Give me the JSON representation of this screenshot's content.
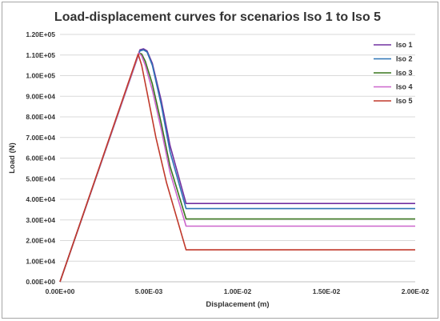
{
  "chart_data": {
    "type": "line",
    "title": "Load-displacement curves for scenarios Iso 1 to Iso 5",
    "xlabel": "Displacement (m)",
    "ylabel": "Load (N)",
    "xlim": [
      0,
      0.02
    ],
    "ylim": [
      0,
      120000
    ],
    "x_ticks": [
      0,
      0.005,
      0.01,
      0.015,
      0.02
    ],
    "x_tick_labels": [
      "0.00E+00",
      "5.00E-03",
      "1.00E-02",
      "1.50E-02",
      "2.00E-02"
    ],
    "y_ticks": [
      0,
      10000,
      20000,
      30000,
      40000,
      50000,
      60000,
      70000,
      80000,
      90000,
      100000,
      110000,
      120000
    ],
    "y_tick_labels": [
      "0.00E+00",
      "1.00E+04",
      "2.00E+04",
      "3.00E+04",
      "4.00E+04",
      "5.00E+04",
      "6.00E+04",
      "7.00E+04",
      "8.00E+04",
      "9.00E+04",
      "1.00E+05",
      "1.10E+05",
      "1.20E+05"
    ],
    "grid": "horizontal",
    "legend_position": "top-right",
    "series": [
      {
        "name": "Iso 1",
        "color": "#7030a0",
        "points": [
          [
            0,
            0
          ],
          [
            0.0045,
            112500
          ],
          [
            0.0047,
            113000
          ],
          [
            0.0049,
            112000
          ],
          [
            0.0052,
            106000
          ],
          [
            0.0057,
            88000
          ],
          [
            0.0062,
            66000
          ],
          [
            0.0071,
            38000
          ],
          [
            0.02,
            38000
          ]
        ]
      },
      {
        "name": "Iso 2",
        "color": "#2e75b6",
        "points": [
          [
            0,
            0
          ],
          [
            0.0045,
            112000
          ],
          [
            0.0047,
            112500
          ],
          [
            0.0049,
            111500
          ],
          [
            0.0052,
            105000
          ],
          [
            0.0057,
            86000
          ],
          [
            0.0062,
            63000
          ],
          [
            0.0071,
            35500
          ],
          [
            0.02,
            35500
          ]
        ]
      },
      {
        "name": "Iso 3",
        "color": "#38761d",
        "points": [
          [
            0,
            0
          ],
          [
            0.00445,
            111000
          ],
          [
            0.0046,
            110500
          ],
          [
            0.0048,
            107000
          ],
          [
            0.0052,
            96000
          ],
          [
            0.0057,
            77000
          ],
          [
            0.0062,
            56000
          ],
          [
            0.0071,
            30500
          ],
          [
            0.02,
            30500
          ]
        ]
      },
      {
        "name": "Iso 4",
        "color": "#cc66cc",
        "points": [
          [
            0,
            0
          ],
          [
            0.00445,
            111000
          ],
          [
            0.0046,
            109500
          ],
          [
            0.0048,
            105000
          ],
          [
            0.0052,
            93000
          ],
          [
            0.0057,
            74000
          ],
          [
            0.0062,
            53000
          ],
          [
            0.0071,
            27000
          ],
          [
            0.02,
            27000
          ]
        ]
      },
      {
        "name": "Iso 5",
        "color": "#c0392b",
        "points": [
          [
            0,
            0
          ],
          [
            0.0044,
            110500
          ],
          [
            0.0046,
            105000
          ],
          [
            0.0049,
            92000
          ],
          [
            0.0054,
            70000
          ],
          [
            0.006,
            48000
          ],
          [
            0.0071,
            15500
          ],
          [
            0.02,
            15500
          ]
        ]
      }
    ]
  }
}
